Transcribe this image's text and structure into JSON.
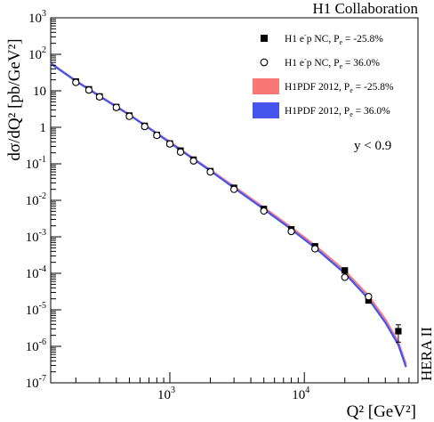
{
  "header": {
    "collaboration": "H1 Collaboration",
    "cut_label": "y < 0.9",
    "side_label": "HERA II"
  },
  "chart_data": {
    "type": "scatter",
    "xlabel": "Q² [GeV²]",
    "ylabel": "dσ/dQ² [pb/GeV²]",
    "x_scale": "log",
    "y_scale": "log",
    "xlim": [
      130,
      70000
    ],
    "ylim": [
      1e-07,
      1000
    ],
    "x_ticks": [
      {
        "base": "10",
        "exp": "3",
        "value": 1000
      },
      {
        "base": "10",
        "exp": "4",
        "value": 10000
      }
    ],
    "y_ticks": [
      {
        "base": "10",
        "exp": "3",
        "value": 1000
      },
      {
        "base": "10",
        "exp": "2",
        "value": 100
      },
      {
        "base": "",
        "exp": "",
        "text": "10",
        "value": 10
      },
      {
        "base": "",
        "exp": "",
        "text": "1",
        "value": 1
      },
      {
        "base": "10",
        "exp": "-1",
        "value": 0.1
      },
      {
        "base": "10",
        "exp": "-2",
        "value": 0.01
      },
      {
        "base": "10",
        "exp": "-3",
        "value": 0.001
      },
      {
        "base": "10",
        "exp": "-4",
        "value": 0.0001
      },
      {
        "base": "10",
        "exp": "-5",
        "value": 1e-05
      },
      {
        "base": "10",
        "exp": "-6",
        "value": 1e-06
      },
      {
        "base": "10",
        "exp": "-7",
        "value": 1e-07
      }
    ],
    "series": [
      {
        "name": "H1 e⁻p NC, Pₑ = -25.8%",
        "legend_text": "H1 e p NC, P",
        "legend_sup": "-",
        "legend_sub": "e",
        "legend_tail": " = -25.8%",
        "marker": "filled-square",
        "points": [
          {
            "x": 200,
            "y": 18
          },
          {
            "x": 250,
            "y": 11
          },
          {
            "x": 300,
            "y": 7
          },
          {
            "x": 400,
            "y": 3.6
          },
          {
            "x": 500,
            "y": 2.1
          },
          {
            "x": 650,
            "y": 1.1
          },
          {
            "x": 800,
            "y": 0.62
          },
          {
            "x": 1000,
            "y": 0.36
          },
          {
            "x": 1200,
            "y": 0.23
          },
          {
            "x": 1500,
            "y": 0.13
          },
          {
            "x": 2000,
            "y": 0.063
          },
          {
            "x": 3000,
            "y": 0.022
          },
          {
            "x": 5000,
            "y": 0.0058
          },
          {
            "x": 8000,
            "y": 0.0016
          },
          {
            "x": 12000,
            "y": 0.00055
          },
          {
            "x": 20000,
            "y": 0.00012
          },
          {
            "x": 30000,
            "y": 1.8e-05
          },
          {
            "x": 50000,
            "y": 2.6e-06,
            "err_low": 1.3e-06,
            "err_high": 3.9e-06
          }
        ]
      },
      {
        "name": "H1 e⁻p NC, Pₑ = 36.0%",
        "legend_text": "H1 e p NC, P",
        "legend_sup": "-",
        "legend_sub": "e",
        "legend_tail": " = 36.0%",
        "marker": "open-circle",
        "points": [
          {
            "x": 200,
            "y": 17
          },
          {
            "x": 250,
            "y": 10.5
          },
          {
            "x": 300,
            "y": 6.8
          },
          {
            "x": 400,
            "y": 3.5
          },
          {
            "x": 500,
            "y": 2.0
          },
          {
            "x": 650,
            "y": 1.05
          },
          {
            "x": 800,
            "y": 0.6
          },
          {
            "x": 1000,
            "y": 0.35
          },
          {
            "x": 1200,
            "y": 0.21
          },
          {
            "x": 1500,
            "y": 0.12
          },
          {
            "x": 2000,
            "y": 0.06
          },
          {
            "x": 3000,
            "y": 0.02
          },
          {
            "x": 5000,
            "y": 0.0051
          },
          {
            "x": 8000,
            "y": 0.0014
          },
          {
            "x": 12000,
            "y": 0.00047
          },
          {
            "x": 20000,
            "y": 7.8e-05
          },
          {
            "x": 30000,
            "y": 2.3e-05
          }
        ]
      },
      {
        "name": "H1PDF 2012, Pₑ = -25.8%",
        "legend_text": "H1PDF 2012, P",
        "legend_sub": "e",
        "legend_tail": " = -25.8%",
        "color": "#f87878",
        "curve": [
          {
            "x": 130,
            "y": 58
          },
          {
            "x": 200,
            "y": 19
          },
          {
            "x": 300,
            "y": 7.3
          },
          {
            "x": 500,
            "y": 2.25
          },
          {
            "x": 800,
            "y": 0.7
          },
          {
            "x": 1000,
            "y": 0.4
          },
          {
            "x": 1500,
            "y": 0.14
          },
          {
            "x": 2000,
            "y": 0.068
          },
          {
            "x": 3000,
            "y": 0.024
          },
          {
            "x": 5000,
            "y": 0.0063
          },
          {
            "x": 8000,
            "y": 0.0018
          },
          {
            "x": 12000,
            "y": 0.00058
          },
          {
            "x": 20000,
            "y": 0.000118
          },
          {
            "x": 30000,
            "y": 2.4e-05
          },
          {
            "x": 40000,
            "y": 5.5e-06
          },
          {
            "x": 50000,
            "y": 1.3e-06
          },
          {
            "x": 57000,
            "y": 3.2e-07
          }
        ]
      },
      {
        "name": "H1PDF 2012, Pₑ = 36.0%",
        "legend_text": "H1PDF 2012, P",
        "legend_sub": "e",
        "legend_tail": " = 36.0%",
        "color": "#4455ee",
        "curve": [
          {
            "x": 130,
            "y": 56
          },
          {
            "x": 200,
            "y": 18.4
          },
          {
            "x": 300,
            "y": 7.1
          },
          {
            "x": 500,
            "y": 2.18
          },
          {
            "x": 800,
            "y": 0.67
          },
          {
            "x": 1000,
            "y": 0.38
          },
          {
            "x": 1500,
            "y": 0.134
          },
          {
            "x": 2000,
            "y": 0.064
          },
          {
            "x": 3000,
            "y": 0.022
          },
          {
            "x": 5000,
            "y": 0.0057
          },
          {
            "x": 8000,
            "y": 0.0016
          },
          {
            "x": 12000,
            "y": 0.0005
          },
          {
            "x": 20000,
            "y": 0.0001
          },
          {
            "x": 30000,
            "y": 2e-05
          },
          {
            "x": 40000,
            "y": 4.5e-06
          },
          {
            "x": 50000,
            "y": 1.1e-06
          },
          {
            "x": 57000,
            "y": 2.7e-07
          }
        ]
      }
    ],
    "colors": {
      "axis": "#000000",
      "pdf_neg": "#f87878",
      "pdf_pos": "#4455ee"
    }
  }
}
